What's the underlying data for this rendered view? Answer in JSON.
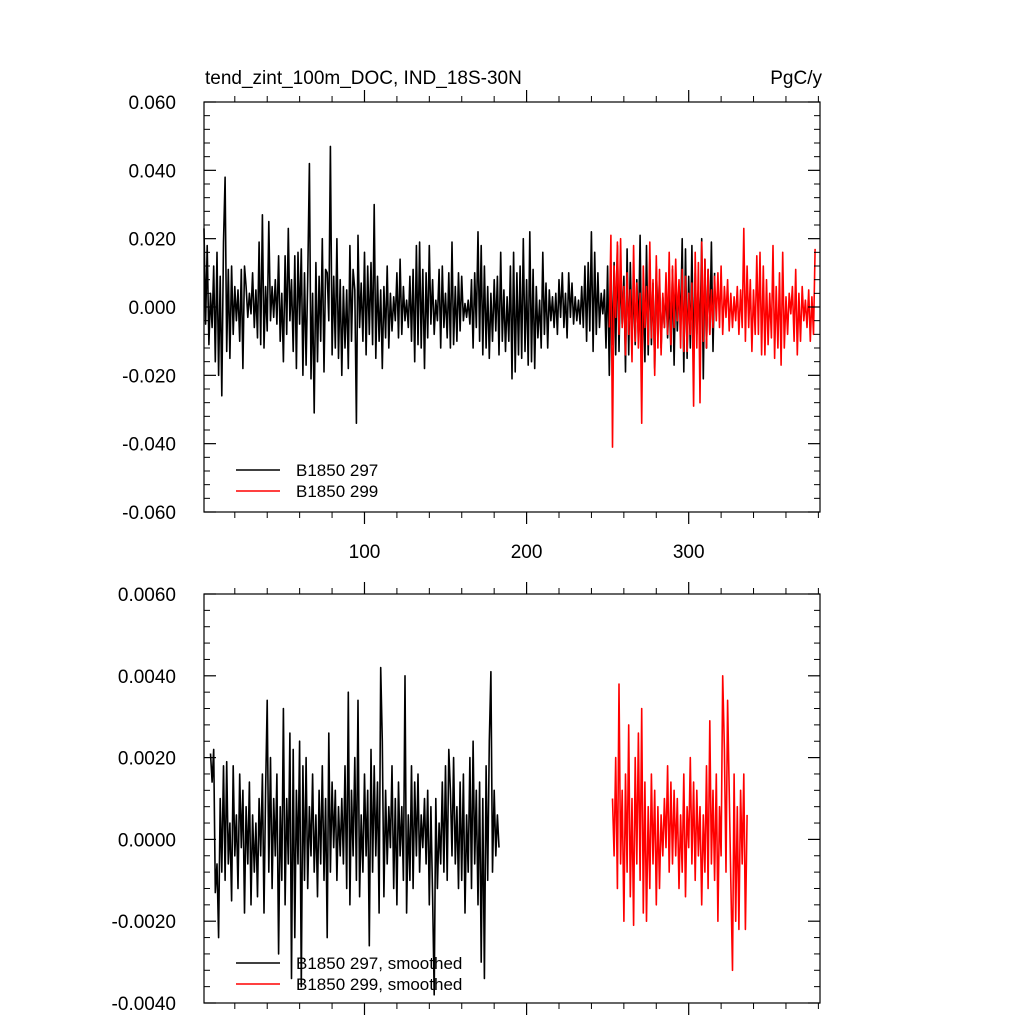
{
  "header": {
    "title": "tend_zint_100m_DOC, IND_18S-30N",
    "units": "PgC/y"
  },
  "colors": {
    "run_297": "#000000",
    "run_299": "#ff0000"
  },
  "chart_data": [
    {
      "type": "line",
      "title": "tend_zint_100m_DOC, IND_18S-30N",
      "units": "PgC/y",
      "xlim": [
        1,
        381
      ],
      "ylim": [
        -0.06,
        0.06
      ],
      "x_ticks": [
        100,
        200,
        300
      ],
      "x_tick_labels": [
        "100",
        "200",
        "300"
      ],
      "y_ticks": [
        -0.06,
        -0.04,
        -0.02,
        0.0,
        0.02,
        0.04,
        0.06
      ],
      "y_tick_labels": [
        "-0.060",
        "-0.040",
        "-0.020",
        "0.000",
        "0.020",
        "0.040",
        "0.060"
      ],
      "legend": {
        "placement": "bottom-left"
      },
      "series": [
        {
          "name": "B1850 297",
          "color": "#000000",
          "x_start": 1,
          "values": [
            0.023,
            -0.005,
            0.018,
            -0.011,
            0.004,
            -0.006,
            0.012,
            -0.016,
            0.016,
            -0.02,
            0.009,
            -0.026,
            0.019,
            0.038,
            -0.013,
            0.011,
            -0.015,
            0.012,
            -0.008,
            0.006,
            -0.004,
            0.005,
            -0.01,
            0.011,
            -0.018,
            0.012,
            0.006,
            -0.003,
            0.004,
            -0.002,
            0.01,
            -0.006,
            0.005,
            -0.009,
            0.019,
            -0.011,
            0.027,
            -0.012,
            0.006,
            -0.007,
            0.025,
            -0.004,
            0.006,
            -0.003,
            0.008,
            -0.005,
            0.015,
            -0.01,
            0.004,
            -0.016,
            0.015,
            -0.008,
            0.023,
            -0.004,
            0.008,
            -0.013,
            0.015,
            -0.018,
            0.016,
            -0.005,
            0.017,
            -0.02,
            0.01,
            -0.017,
            0.008,
            0.042,
            -0.021,
            0.004,
            -0.031,
            0.013,
            -0.016,
            0.009,
            -0.01,
            0.02,
            -0.019,
            0.011,
            0.01,
            -0.004,
            0.047,
            -0.014,
            0.009,
            -0.012,
            0.02,
            -0.015,
            0.008,
            -0.02,
            0.006,
            -0.012,
            0.005,
            -0.018,
            0.018,
            -0.01,
            0.011,
            0.005,
            -0.034,
            0.021,
            -0.006,
            0.007,
            -0.01,
            0.016,
            -0.014,
            0.012,
            -0.008,
            0.013,
            -0.011,
            0.03,
            -0.015,
            0.009,
            -0.01,
            0.005,
            -0.018,
            0.006,
            -0.009,
            0.012,
            -0.012,
            0.004,
            -0.007,
            0.003,
            -0.004,
            0.01,
            -0.009,
            0.014,
            -0.008,
            0.006,
            -0.004,
            0.002,
            -0.006,
            0.009,
            -0.01,
            0.011,
            -0.016,
            0.018,
            -0.011,
            0.019,
            -0.012,
            0.011,
            -0.018,
            0.01,
            -0.009,
            0.018,
            -0.005,
            0.008,
            -0.008,
            0.002,
            -0.004,
            0.011,
            -0.012,
            0.012,
            -0.006,
            0.004,
            -0.009,
            0.01,
            -0.012,
            0.019,
            -0.011,
            0.006,
            -0.01,
            0.01,
            -0.007,
            0.009,
            -0.004,
            0.001,
            -0.003,
            0.002,
            -0.005,
            0.008,
            -0.012,
            0.01,
            -0.006,
            0.022,
            -0.01,
            0.018,
            -0.014,
            0.012,
            -0.012,
            0.006,
            -0.015,
            0.004,
            -0.01,
            0.008,
            -0.007,
            0.009,
            -0.014,
            0.016,
            -0.01,
            0.005,
            -0.013,
            0.003,
            -0.01,
            0.012,
            -0.021,
            0.016,
            -0.019,
            0.01,
            -0.014,
            0.012,
            -0.015,
            0.02,
            -0.013,
            0.008,
            -0.017,
            0.022,
            -0.016,
            0.011,
            -0.018,
            0.006,
            -0.009,
            0.002,
            -0.012,
            0.016,
            -0.008,
            0.007,
            -0.012,
            0.005,
            -0.004,
            0.003,
            -0.006,
            0.004,
            -0.008,
            0.008,
            -0.003,
            0.01,
            -0.006,
            0.004,
            -0.009,
            0.01,
            -0.003,
            0.007,
            -0.005,
            0.003,
            -0.004,
            0.002,
            -0.005,
            0.006,
            -0.006,
            0.012,
            -0.01,
            0.013,
            -0.007,
            0.022,
            -0.013,
            0.016,
            -0.008,
            0.01,
            -0.006,
            0.004,
            -0.002,
            0.005,
            -0.012,
            0.012,
            -0.02,
            0.009,
            -0.011,
            0.013,
            -0.014,
            0.018,
            -0.013,
            0.011,
            -0.005,
            0.009,
            -0.019,
            0.017,
            -0.014,
            0.013,
            -0.009,
            0.006,
            -0.011,
            0.008,
            -0.009,
            0.021,
            -0.015,
            0.006,
            -0.016,
            0.018,
            -0.014,
            0.014,
            -0.011,
            0.007,
            -0.018,
            0.012,
            -0.004,
            0.008,
            -0.012,
            0.003,
            -0.006,
            0.006,
            -0.009,
            0.004,
            -0.013,
            0.011,
            -0.017,
            0.01,
            -0.007,
            0.006,
            -0.004,
            0.02,
            -0.019,
            0.017,
            -0.015,
            0.009,
            -0.012,
            0.018,
            -0.017,
            0.01,
            -0.008,
            0.006,
            -0.009,
            0.02,
            -0.021,
            0.014,
            -0.012,
            0.011,
            -0.008,
            0.019,
            -0.013,
            0.01
          ]
        },
        {
          "name": "B1850 299",
          "color": "#ff0000",
          "x_start": 251,
          "values": [
            -0.006,
            0.021,
            -0.041,
            0.012,
            -0.003,
            0.019,
            -0.008,
            0.02,
            -0.006,
            0.006,
            -0.014,
            0.01,
            -0.008,
            0.005,
            -0.016,
            0.018,
            -0.01,
            0.007,
            -0.012,
            0.004,
            -0.034,
            0.012,
            -0.006,
            0.006,
            -0.011,
            0.019,
            -0.009,
            0.008,
            -0.02,
            0.015,
            -0.012,
            0.011,
            -0.014,
            0.004,
            -0.006,
            0.01,
            -0.008,
            0.016,
            -0.011,
            0.012,
            -0.006,
            0.014,
            -0.004,
            0.008,
            -0.012,
            0.011,
            -0.013,
            0.009,
            -0.013,
            0.004,
            -0.008,
            0.007,
            -0.029,
            0.016,
            -0.012,
            0.013,
            -0.028,
            0.019,
            -0.01,
            0.014,
            -0.012,
            0.011,
            -0.008,
            0.005,
            -0.006,
            0.009,
            -0.004,
            0.01,
            -0.006,
            0.012,
            -0.008,
            0.006,
            -0.003,
            0.008,
            -0.007,
            0.004,
            -0.006,
            0.003,
            -0.004,
            0.006,
            -0.008,
            0.005,
            -0.006,
            0.023,
            -0.01,
            0.012,
            -0.006,
            0.008,
            -0.013,
            0.005,
            -0.008,
            0.015,
            -0.008,
            0.016,
            -0.014,
            0.012,
            -0.014,
            0.008,
            -0.011,
            0.004,
            -0.009,
            0.018,
            -0.015,
            0.006,
            -0.012,
            0.01,
            -0.017,
            0.016,
            -0.012,
            0.003,
            -0.008,
            0.004,
            -0.002,
            0.006,
            -0.01,
            0.011,
            -0.014,
            0.004,
            -0.01,
            0.006,
            -0.004,
            0.002,
            -0.006,
            0.005,
            -0.01,
            0.003,
            -0.008,
            0.017
          ]
        }
      ]
    },
    {
      "type": "line",
      "xlim": [
        1,
        381
      ],
      "ylim": [
        -0.004,
        0.006
      ],
      "x_ticks": [
        100,
        200,
        300
      ],
      "y_ticks": [
        -0.004,
        -0.002,
        0.0,
        0.002,
        0.004,
        0.006
      ],
      "y_tick_labels": [
        "-0.0040",
        "-0.0020",
        "0.0000",
        "0.0020",
        "0.0040",
        "0.0060"
      ],
      "legend": {
        "placement": "bottom-left"
      },
      "series": [
        {
          "name": "B1850 297, smoothed",
          "color": "#000000",
          "x_start": 5,
          "values": [
            0.0021,
            0.0014,
            0.0022,
            -0.0013,
            -0.0006,
            -0.0024,
            0.001,
            -0.0008,
            0.0018,
            -0.001,
            0.0019,
            -0.0006,
            0.0004,
            -0.0015,
            0.0018,
            -0.0004,
            0.0006,
            -0.0012,
            0.0016,
            -0.0002,
            0.0012,
            -0.0018,
            0.0008,
            -0.0006,
            0.0014,
            -0.0016,
            0.0006,
            -0.0008,
            0.0004,
            -0.0014,
            0.001,
            -0.0004,
            0.0016,
            -0.0018,
            0.0012,
            0.0034,
            -0.0008,
            0.002,
            -0.0012,
            0.001,
            -0.0004,
            0.0016,
            -0.0028,
            0.0008,
            -0.001,
            0.0032,
            -0.0016,
            0.001,
            -0.0006,
            0.0026,
            -0.0034,
            0.0022,
            -0.0024,
            0.0012,
            -0.0006,
            0.0024,
            -0.0036,
            0.0018,
            -0.001,
            0.002,
            -0.0012,
            0.0008,
            -0.0004,
            0.0016,
            -0.0008,
            0.0006,
            -0.0014,
            0.0012,
            -0.0006,
            0.0018,
            -0.001,
            0.001,
            -0.0024,
            0.0026,
            -0.0008,
            0.0014,
            -0.0002,
            0.0012,
            -0.001,
            0.0008,
            -0.0004,
            0.001,
            -0.0006,
            0.0018,
            -0.0012,
            0.0036,
            -0.0016,
            0.0012,
            -0.0004,
            0.002,
            -0.001,
            0.0034,
            -0.0014,
            0.0006,
            -0.0008,
            0.0016,
            -0.0004,
            0.0012,
            -0.0026,
            0.0022,
            -0.0008,
            0.0018,
            -0.0004,
            0.0014,
            -0.0018,
            0.0042,
            0.0024,
            -0.0014,
            0.0012,
            -0.0006,
            0.0008,
            -0.0002,
            0.0018,
            -0.0012,
            0.001,
            -0.0016,
            0.0014,
            -0.0004,
            0.0008,
            -0.001,
            0.004,
            -0.0018,
            0.0006,
            -0.001,
            0.0018,
            -0.0012,
            0.0014,
            -0.0004,
            0.0016,
            -0.0008,
            0.0006,
            -0.0002,
            0.001,
            -0.0006,
            0.0012,
            -0.0016,
            0.0008,
            -0.0014,
            -0.0038,
            0.001,
            -0.0012,
            0.0004,
            -0.0006,
            0.0014,
            -0.0008,
            0.0018,
            -0.001,
            0.0022,
            0.0012,
            -0.0004,
            0.002,
            -0.0006,
            0.0008,
            -0.0012,
            0.0014,
            -0.001,
            0.0016,
            -0.0018,
            0.0006,
            -0.0008,
            0.002,
            -0.0012,
            0.0024,
            -0.0006,
            0.0012,
            -0.0016,
            0.0014,
            -0.003,
            0.001,
            -0.0034,
            0.0018,
            -0.001,
            0.0024,
            0.0041,
            -0.0008,
            0.0012,
            -0.0004,
            0.0006,
            -0.0002
          ]
        },
        {
          "name": "B1850 299, smoothed",
          "color": "#ff0000",
          "x_start": 253,
          "values": [
            0.001,
            -0.0004,
            0.002,
            -0.0012,
            0.0038,
            -0.0006,
            0.0012,
            -0.002,
            0.0016,
            -0.0008,
            0.0028,
            -0.0014,
            0.001,
            -0.0021,
            0.002,
            -0.0006,
            0.0026,
            -0.001,
            0.0032,
            -0.0018,
            0.0014,
            -0.002,
            0.0008,
            -0.0012,
            0.0016,
            -0.0006,
            0.0012,
            -0.0016,
            0.0008,
            -0.0012,
            0.0006,
            -0.0004,
            0.001,
            -0.0002,
            0.0018,
            -0.0008,
            0.0014,
            -0.0006,
            0.0012,
            -0.0004,
            0.001,
            -0.0012,
            0.0006,
            -0.0008,
            0.0016,
            -0.0014,
            0.0008,
            -0.0002,
            0.002,
            -0.0006,
            0.0014,
            -0.001,
            0.0012,
            -0.0004,
            0.0008,
            -0.0016,
            0.0006,
            -0.0008,
            0.0018,
            -0.0012,
            0.0029,
            -0.0006,
            0.0012,
            -0.001,
            0.0016,
            -0.002,
            0.0008,
            -0.0004,
            0.004,
            0.0022,
            -0.0008,
            0.0034,
            0.0012,
            -0.001,
            -0.0032,
            0.0016,
            -0.002,
            0.0008,
            -0.0022,
            0.0012,
            -0.0006,
            0.0016,
            -0.0022,
            0.0006
          ]
        }
      ]
    }
  ]
}
